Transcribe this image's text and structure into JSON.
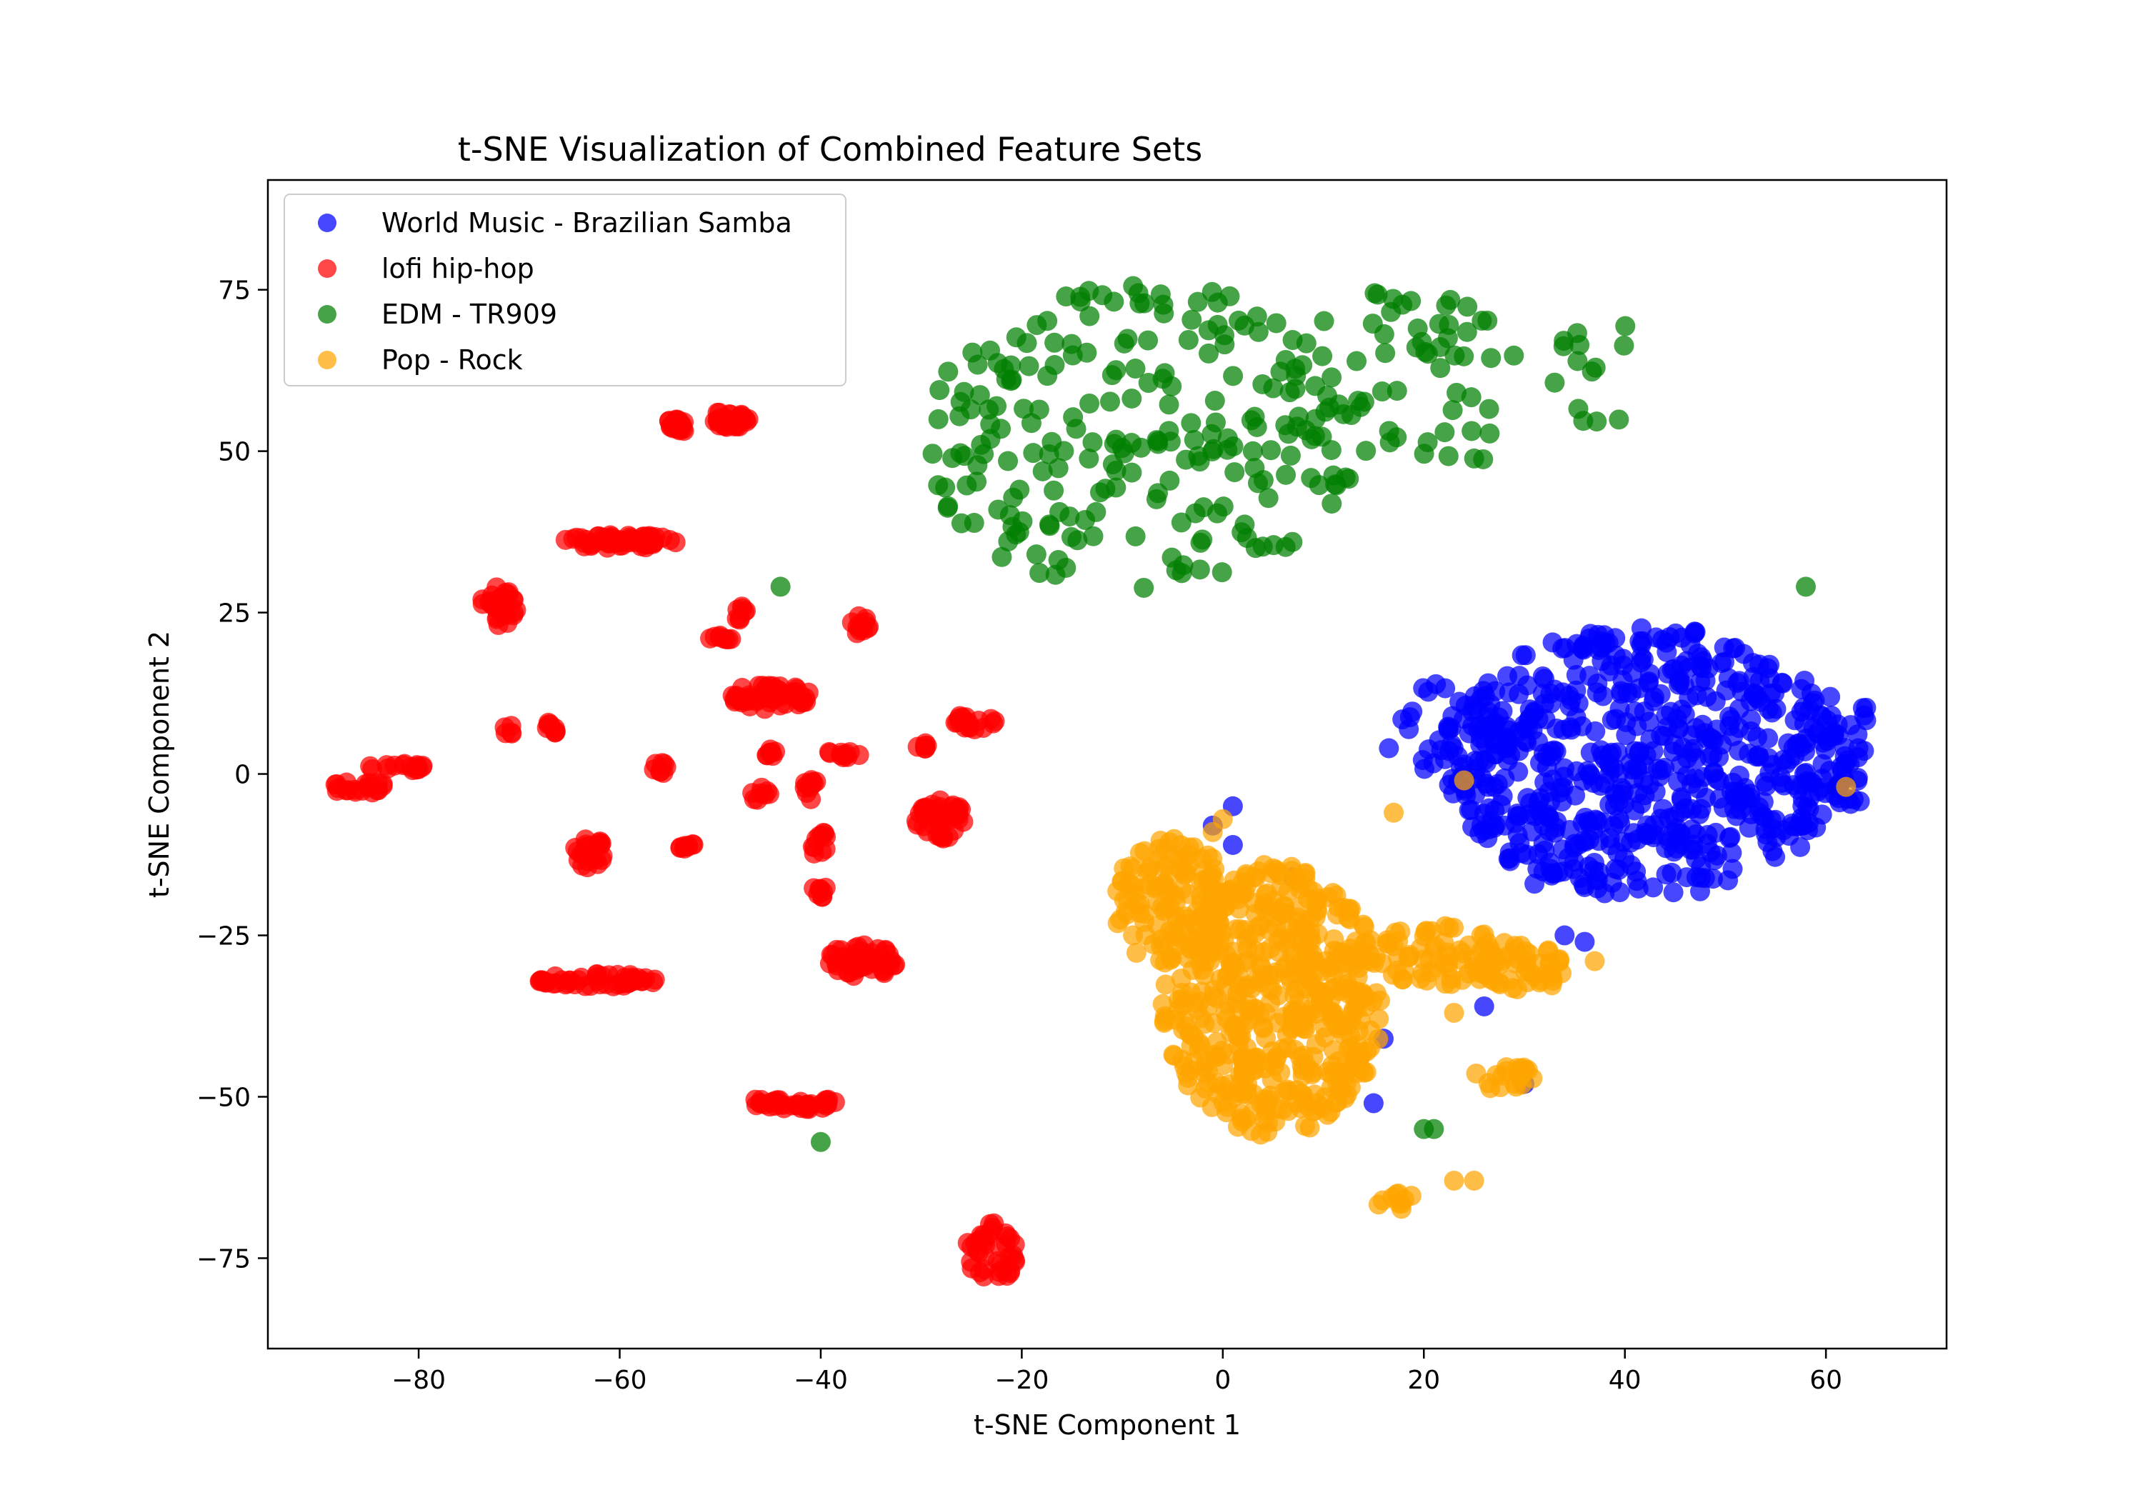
{
  "chart_data": {
    "type": "scatter",
    "title": "t-SNE Visualization of Combined Feature Sets",
    "xlabel": "t-SNE Component 1",
    "ylabel": "t-SNE Component 2",
    "xlim": [
      -95,
      72
    ],
    "ylim": [
      -89,
      92
    ],
    "xticks": [
      -80,
      -60,
      -40,
      -20,
      0,
      20,
      40,
      60
    ],
    "yticks": [
      -75,
      -50,
      -25,
      0,
      25,
      50,
      75
    ],
    "xtick_labels": [
      "−80",
      "−60",
      "−40",
      "−20",
      "0",
      "20",
      "40",
      "60"
    ],
    "ytick_labels": [
      "−75",
      "−50",
      "−25",
      "0",
      "25",
      "50",
      "75"
    ],
    "grid": false,
    "legend_position": "top-left",
    "series": [
      {
        "name": "World Music - Brazilian Samba",
        "color": "#0000ff",
        "clusters": [
          {
            "cx": 42,
            "cy": 2,
            "rx": 20,
            "ry": 21,
            "n": 620
          },
          {
            "cx": 22,
            "cy": 6,
            "rx": 6,
            "ry": 8,
            "n": 40
          },
          {
            "cx": 62,
            "cy": 4,
            "rx": 3,
            "ry": 10,
            "n": 40
          }
        ],
        "points": [
          [
            31,
            -17
          ],
          [
            34,
            -25
          ],
          [
            36,
            -26
          ],
          [
            30,
            -48
          ],
          [
            16,
            -41
          ],
          [
            7,
            -16
          ],
          [
            1,
            -5
          ],
          [
            -1,
            -8
          ],
          [
            1,
            -11
          ],
          [
            26,
            -36
          ],
          [
            15,
            -51
          ]
        ]
      },
      {
        "name": "lofi hip-hop",
        "color": "#ff0000",
        "clusters": [
          {
            "cx": -49,
            "cy": 55,
            "rx": 2,
            "ry": 1.4,
            "n": 30
          },
          {
            "cx": -54,
            "cy": 54,
            "rx": 1.6,
            "ry": 1,
            "n": 20
          },
          {
            "cx": -60,
            "cy": 36,
            "rx": 6,
            "ry": 1,
            "n": 55
          },
          {
            "cx": -72,
            "cy": 26,
            "rx": 1.8,
            "ry": 3,
            "n": 30
          },
          {
            "cx": -48,
            "cy": 25,
            "rx": 0.6,
            "ry": 1.2,
            "n": 8
          },
          {
            "cx": -50,
            "cy": 21,
            "rx": 1.2,
            "ry": 0.6,
            "n": 8
          },
          {
            "cx": -36,
            "cy": 23,
            "rx": 1,
            "ry": 1.5,
            "n": 12
          },
          {
            "cx": -45,
            "cy": 12,
            "rx": 4,
            "ry": 2,
            "n": 55
          },
          {
            "cx": -71,
            "cy": 7,
            "rx": 0.6,
            "ry": 1,
            "n": 5
          },
          {
            "cx": -67,
            "cy": 7,
            "rx": 0.8,
            "ry": 1,
            "n": 8
          },
          {
            "cx": -25,
            "cy": 8,
            "rx": 2.5,
            "ry": 1.2,
            "n": 18
          },
          {
            "cx": -30,
            "cy": 4,
            "rx": 0.8,
            "ry": 1,
            "n": 6
          },
          {
            "cx": -82,
            "cy": 1,
            "rx": 3,
            "ry": 0.6,
            "n": 15
          },
          {
            "cx": -86,
            "cy": -2,
            "rx": 3,
            "ry": 1,
            "n": 20
          },
          {
            "cx": -56,
            "cy": 1,
            "rx": 0.8,
            "ry": 1,
            "n": 8
          },
          {
            "cx": -45,
            "cy": 3,
            "rx": 0.8,
            "ry": 1,
            "n": 8
          },
          {
            "cx": -38,
            "cy": 3,
            "rx": 2,
            "ry": 0.6,
            "n": 10
          },
          {
            "cx": -28,
            "cy": -7,
            "rx": 2.5,
            "ry": 3,
            "n": 40
          },
          {
            "cx": -46,
            "cy": -3,
            "rx": 1,
            "ry": 1.2,
            "n": 8
          },
          {
            "cx": -41,
            "cy": -2,
            "rx": 0.6,
            "ry": 2,
            "n": 10
          },
          {
            "cx": -63,
            "cy": -12,
            "rx": 1.5,
            "ry": 2.5,
            "n": 25
          },
          {
            "cx": -54,
            "cy": -11,
            "rx": 1.5,
            "ry": 0.6,
            "n": 8
          },
          {
            "cx": -40,
            "cy": -11,
            "rx": 1,
            "ry": 2,
            "n": 12
          },
          {
            "cx": -40,
            "cy": -18,
            "rx": 0.8,
            "ry": 1.2,
            "n": 8
          },
          {
            "cx": -36,
            "cy": -29,
            "rx": 3.5,
            "ry": 2.5,
            "n": 55
          },
          {
            "cx": -62,
            "cy": -32,
            "rx": 6,
            "ry": 1,
            "n": 50
          },
          {
            "cx": -43,
            "cy": -51,
            "rx": 5,
            "ry": 1,
            "n": 35
          },
          {
            "cx": -23,
            "cy": -74,
            "rx": 2.5,
            "ry": 5,
            "n": 40
          }
        ],
        "points": []
      },
      {
        "name": "EDM - TR909",
        "color": "#008000",
        "clusters": [
          {
            "cx": -8,
            "cy": 52,
            "rx": 22,
            "ry": 24,
            "n": 230
          },
          {
            "cx": 18,
            "cy": 60,
            "rx": 12,
            "ry": 15,
            "n": 60
          },
          {
            "cx": 38,
            "cy": 62,
            "rx": 6,
            "ry": 8,
            "n": 14
          }
        ],
        "points": [
          [
            -44,
            29
          ],
          [
            58,
            29
          ],
          [
            -40,
            -57
          ],
          [
            20,
            -55
          ],
          [
            21,
            -55
          ]
        ]
      },
      {
        "name": "Pop - Rock",
        "color": "#ffa500",
        "clusters": [
          {
            "cx": 5,
            "cy": -35,
            "rx": 11,
            "ry": 21,
            "n": 520
          },
          {
            "cx": -5,
            "cy": -20,
            "rx": 6,
            "ry": 10,
            "n": 120
          },
          {
            "cx": 22,
            "cy": -28,
            "rx": 7,
            "ry": 5,
            "n": 70
          },
          {
            "cx": 30,
            "cy": -30,
            "rx": 4,
            "ry": 4,
            "n": 45
          },
          {
            "cx": 28,
            "cy": -47,
            "rx": 3,
            "ry": 2,
            "n": 20
          },
          {
            "cx": 17,
            "cy": -66,
            "rx": 2,
            "ry": 1.5,
            "n": 10
          }
        ],
        "points": [
          [
            17,
            -6
          ],
          [
            24,
            -1
          ],
          [
            62,
            -2
          ],
          [
            0,
            -7
          ],
          [
            -1,
            -9
          ],
          [
            37,
            -29
          ],
          [
            23,
            -63
          ],
          [
            25,
            -63
          ],
          [
            23,
            -37
          ]
        ]
      }
    ]
  }
}
